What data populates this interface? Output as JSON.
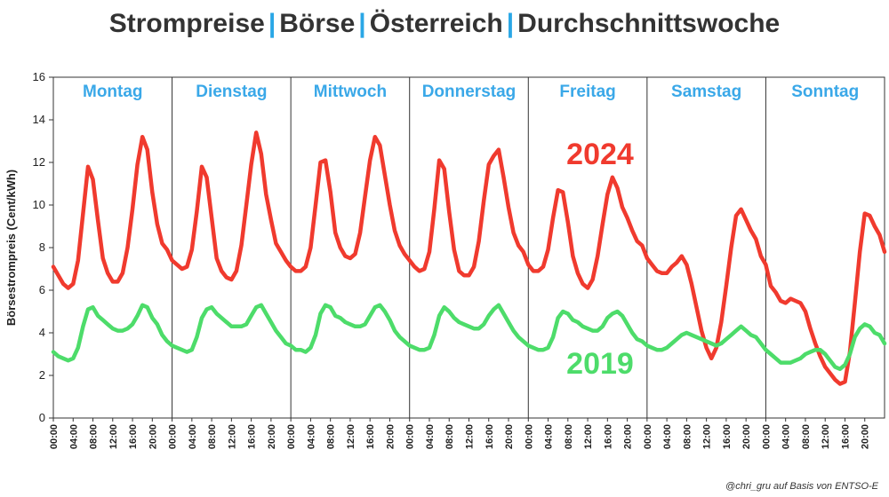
{
  "title_parts": [
    "Strompreise",
    "Börse",
    "Österreich",
    "Durchschnittswoche"
  ],
  "title_separator": "|",
  "credit": "@chri_gru auf Basis von ENTSO-E",
  "colors": {
    "series_2024": "#f03a2e",
    "series_2019": "#4ddc6a",
    "day_labels": "#3aa8e8",
    "title": "#333333",
    "title_separator": "#2aa7e6"
  },
  "chart_data": {
    "type": "line",
    "ylabel": "Börsestrompreis (Cent/kWh)",
    "ylim": [
      0,
      16
    ],
    "yticks": [
      0,
      2,
      4,
      6,
      8,
      10,
      12,
      14,
      16
    ],
    "x_tick_labels": [
      "00:00",
      "04:00",
      "08:00",
      "12:00",
      "16:00",
      "20:00"
    ],
    "days": [
      "Montag",
      "Dienstag",
      "Mittwoch",
      "Donnerstag",
      "Freitag",
      "Samstag",
      "Sonntag"
    ],
    "hours_per_day": 24,
    "grid": false,
    "series": [
      {
        "name": "2024",
        "values": [
          7.1,
          6.7,
          6.3,
          6.1,
          6.3,
          7.4,
          9.6,
          11.8,
          11.2,
          9.3,
          7.5,
          6.8,
          6.4,
          6.4,
          6.8,
          8.0,
          9.8,
          11.9,
          13.2,
          12.6,
          10.6,
          9.1,
          8.2,
          7.9,
          7.4,
          7.2,
          7.0,
          7.1,
          7.9,
          9.7,
          11.8,
          11.3,
          9.4,
          7.5,
          6.9,
          6.6,
          6.5,
          6.9,
          8.1,
          10.0,
          11.9,
          13.4,
          12.4,
          10.5,
          9.3,
          8.2,
          7.8,
          7.4,
          7.1,
          6.9,
          6.9,
          7.1,
          8.0,
          10.0,
          12.0,
          12.1,
          10.6,
          8.7,
          8.0,
          7.6,
          7.5,
          7.7,
          8.7,
          10.4,
          12.1,
          13.2,
          12.8,
          11.4,
          10.0,
          8.8,
          8.1,
          7.7,
          7.4,
          7.1,
          6.9,
          7.0,
          7.8,
          9.8,
          12.1,
          11.7,
          9.7,
          7.9,
          6.9,
          6.7,
          6.7,
          7.1,
          8.3,
          10.2,
          11.9,
          12.3,
          12.6,
          11.3,
          9.9,
          8.7,
          8.1,
          7.8,
          7.2,
          6.9,
          6.9,
          7.1,
          7.9,
          9.4,
          10.7,
          10.6,
          9.2,
          7.6,
          6.8,
          6.3,
          6.1,
          6.5,
          7.6,
          9.1,
          10.5,
          11.3,
          10.8,
          9.9,
          9.4,
          8.8,
          8.3,
          8.1,
          7.5,
          7.2,
          6.9,
          6.8,
          6.8,
          7.1,
          7.3,
          7.6,
          7.2,
          6.3,
          5.2,
          4.1,
          3.3,
          2.8,
          3.3,
          4.5,
          6.2,
          8.0,
          9.5,
          9.8,
          9.3,
          8.8,
          8.4,
          7.6,
          7.2,
          6.2,
          5.9,
          5.5,
          5.4,
          5.6,
          5.5,
          5.4,
          5.0,
          4.2,
          3.5,
          2.9,
          2.4,
          2.1,
          1.8,
          1.6,
          1.7,
          3.1,
          5.4,
          7.8,
          9.6,
          9.5,
          9.0,
          8.6,
          7.8
        ]
      },
      {
        "name": "2019",
        "values": [
          3.1,
          2.9,
          2.8,
          2.7,
          2.8,
          3.3,
          4.3,
          5.1,
          5.2,
          4.8,
          4.6,
          4.4,
          4.2,
          4.1,
          4.1,
          4.2,
          4.4,
          4.8,
          5.3,
          5.2,
          4.7,
          4.4,
          3.9,
          3.6,
          3.4,
          3.3,
          3.2,
          3.1,
          3.2,
          3.8,
          4.7,
          5.1,
          5.2,
          4.9,
          4.7,
          4.5,
          4.3,
          4.3,
          4.3,
          4.4,
          4.8,
          5.2,
          5.3,
          4.9,
          4.5,
          4.1,
          3.8,
          3.5,
          3.4,
          3.2,
          3.2,
          3.1,
          3.3,
          3.9,
          4.9,
          5.3,
          5.2,
          4.8,
          4.7,
          4.5,
          4.4,
          4.3,
          4.3,
          4.4,
          4.8,
          5.2,
          5.3,
          5.0,
          4.6,
          4.1,
          3.8,
          3.6,
          3.4,
          3.3,
          3.2,
          3.2,
          3.3,
          3.9,
          4.8,
          5.2,
          5.0,
          4.7,
          4.5,
          4.4,
          4.3,
          4.2,
          4.2,
          4.4,
          4.8,
          5.1,
          5.3,
          4.9,
          4.5,
          4.1,
          3.8,
          3.6,
          3.4,
          3.3,
          3.2,
          3.2,
          3.3,
          3.8,
          4.7,
          5.0,
          4.9,
          4.6,
          4.5,
          4.3,
          4.2,
          4.1,
          4.1,
          4.3,
          4.7,
          4.9,
          5.0,
          4.8,
          4.4,
          4.0,
          3.7,
          3.6,
          3.4,
          3.3,
          3.2,
          3.2,
          3.3,
          3.5,
          3.7,
          3.9,
          4.0,
          3.9,
          3.8,
          3.7,
          3.6,
          3.5,
          3.4,
          3.5,
          3.7,
          3.9,
          4.1,
          4.3,
          4.1,
          3.9,
          3.8,
          3.5,
          3.2,
          3.0,
          2.8,
          2.6,
          2.6,
          2.6,
          2.7,
          2.8,
          3.0,
          3.1,
          3.2,
          3.2,
          3.0,
          2.7,
          2.4,
          2.3,
          2.5,
          3.0,
          3.8,
          4.2,
          4.4,
          4.3,
          4.0,
          3.9,
          3.5
        ]
      }
    ],
    "series_labels_on_chart": [
      "2024",
      "2019"
    ]
  }
}
